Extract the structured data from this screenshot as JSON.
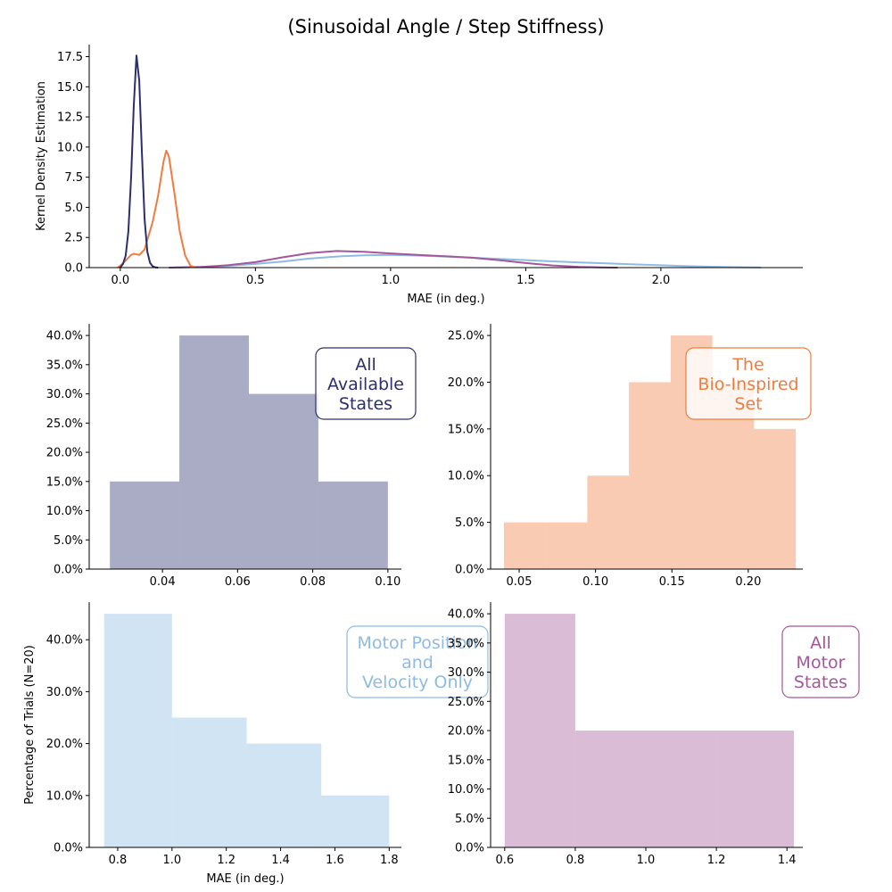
{
  "figure_title": "(Sinusoidal Angle / Step Stiffness)",
  "colors": {
    "all_states": "#2b2f6e",
    "bio_inspired": "#f07c3e",
    "motor_pos_vel": "#8dbbe3",
    "all_motor": "#a4579b"
  },
  "chart_data": [
    {
      "id": "kde",
      "type": "line",
      "title": "",
      "xlabel": "MAE (in deg.)",
      "ylabel": "Kernel Density Estimation",
      "xlim": [
        -0.115,
        2.525
      ],
      "ylim": [
        0,
        18.5
      ],
      "xticks": [
        0.0,
        0.5,
        1.0,
        1.5,
        2.0
      ],
      "xtick_labels": [
        "0.0",
        "0.5",
        "1.0",
        "1.5",
        "2.0"
      ],
      "yticks": [
        0,
        2.5,
        5,
        7.5,
        10,
        12.5,
        15,
        17.5
      ],
      "ytick_labels": [
        "0.0",
        "2.5",
        "5.0",
        "7.5",
        "10.0",
        "12.5",
        "15.0",
        "17.5"
      ],
      "series": [
        {
          "color_key": "motor_pos_vel",
          "x": [
            0.18,
            0.3,
            0.4,
            0.5,
            0.6,
            0.7,
            0.8,
            0.9,
            1.0,
            1.1,
            1.2,
            1.3,
            1.4,
            1.5,
            1.6,
            1.7,
            1.8,
            1.9,
            2.0,
            2.1,
            2.2,
            2.3,
            2.37
          ],
          "y": [
            0.0,
            0.05,
            0.15,
            0.3,
            0.5,
            0.75,
            0.92,
            1.02,
            1.05,
            1.0,
            0.92,
            0.82,
            0.72,
            0.62,
            0.52,
            0.43,
            0.35,
            0.27,
            0.19,
            0.12,
            0.07,
            0.03,
            0.01
          ]
        },
        {
          "color_key": "all_motor",
          "x": [
            0.18,
            0.3,
            0.4,
            0.5,
            0.6,
            0.7,
            0.8,
            0.9,
            1.0,
            1.1,
            1.2,
            1.3,
            1.4,
            1.5,
            1.6,
            1.7,
            1.8,
            1.84
          ],
          "y": [
            0.0,
            0.05,
            0.2,
            0.45,
            0.85,
            1.2,
            1.38,
            1.32,
            1.18,
            1.05,
            0.95,
            0.82,
            0.62,
            0.38,
            0.18,
            0.06,
            0.01,
            0.0
          ]
        },
        {
          "color_key": "bio_inspired",
          "x": [
            -0.01,
            0.0,
            0.02,
            0.04,
            0.05,
            0.07,
            0.09,
            0.1,
            0.12,
            0.14,
            0.16,
            0.17,
            0.18,
            0.2,
            0.22,
            0.24,
            0.26,
            0.28
          ],
          "y": [
            0.0,
            0.15,
            0.6,
            1.05,
            1.15,
            1.05,
            1.5,
            2.3,
            3.8,
            6.0,
            8.8,
            9.7,
            9.2,
            6.2,
            3.0,
            1.0,
            0.15,
            0.0
          ]
        },
        {
          "color_key": "all_states",
          "x": [
            0.0,
            0.01,
            0.02,
            0.03,
            0.04,
            0.05,
            0.06,
            0.07,
            0.08,
            0.09,
            0.1,
            0.11,
            0.12,
            0.13,
            0.14
          ],
          "y": [
            0.0,
            0.3,
            1.0,
            3.0,
            7.5,
            13.5,
            17.6,
            15.5,
            9.5,
            4.0,
            1.3,
            0.4,
            0.1,
            0.02,
            0.0
          ]
        }
      ]
    },
    {
      "id": "hist_all_states",
      "type": "bar",
      "annotation": [
        "All",
        "Available",
        "States"
      ],
      "color_key": "all_states",
      "xlim": [
        0.0205,
        0.1036
      ],
      "ylim": [
        0,
        0.42
      ],
      "bin_edges": [
        0.026,
        0.0445,
        0.063,
        0.0815,
        0.1
      ],
      "values": [
        0.15,
        0.4,
        0.3,
        0.15
      ],
      "xticks": [
        0.04,
        0.06,
        0.08,
        0.1
      ],
      "xtick_labels": [
        "0.04",
        "0.06",
        "0.08",
        "0.10"
      ],
      "yticks": [
        0,
        0.05,
        0.1,
        0.15,
        0.2,
        0.25,
        0.3,
        0.35,
        0.4
      ],
      "ytick_labels": [
        "0.0%",
        "5.0%",
        "10.0%",
        "15.0%",
        "20.0%",
        "25.0%",
        "30.0%",
        "35.0%",
        "40.0%"
      ]
    },
    {
      "id": "hist_bio_inspired",
      "type": "bar",
      "annotation": [
        "The",
        "Bio-Inspired",
        "Set"
      ],
      "color_key": "bio_inspired",
      "xlim": [
        0.0313,
        0.2357
      ],
      "ylim": [
        0,
        0.2625
      ],
      "bin_edges": [
        0.04,
        0.0673,
        0.0946,
        0.1219,
        0.1492,
        0.1765,
        0.2038,
        0.2311
      ],
      "values": [
        0.05,
        0.05,
        0.1,
        0.2,
        0.25,
        0.2,
        0.15
      ],
      "xticks": [
        0.05,
        0.1,
        0.15,
        0.2
      ],
      "xtick_labels": [
        "0.05",
        "0.10",
        "0.15",
        "0.20"
      ],
      "yticks": [
        0,
        0.05,
        0.1,
        0.15,
        0.2,
        0.25
      ],
      "ytick_labels": [
        "0.0%",
        "5.0%",
        "10.0%",
        "15.0%",
        "20.0%",
        "25.0%"
      ]
    },
    {
      "id": "hist_motor_pos_vel",
      "type": "bar",
      "annotation": [
        "Motor Position",
        "and",
        "Velocity Only"
      ],
      "color_key": "motor_pos_vel",
      "xlabel": "MAE (in deg.)",
      "ylabel": "Percentage of Trials (N=20)",
      "xlim": [
        0.695,
        1.845
      ],
      "ylim": [
        0,
        0.4725
      ],
      "bin_edges": [
        0.75,
        1.0,
        1.275,
        1.55,
        1.8
      ],
      "values": [
        0.45,
        0.25,
        0.2,
        0.1
      ],
      "xticks": [
        0.8,
        1.0,
        1.2,
        1.4,
        1.6,
        1.8
      ],
      "xtick_labels": [
        "0.8",
        "1.0",
        "1.2",
        "1.4",
        "1.6",
        "1.8"
      ],
      "yticks": [
        0,
        0.1,
        0.2,
        0.3,
        0.4
      ],
      "ytick_labels": [
        "0.0%",
        "10.0%",
        "20.0%",
        "30.0%",
        "40.0%"
      ]
    },
    {
      "id": "hist_all_motor",
      "type": "bar",
      "annotation": [
        "All",
        "Motor",
        "States"
      ],
      "color_key": "all_motor",
      "xlim": [
        0.56,
        1.445
      ],
      "ylim": [
        0,
        0.42
      ],
      "bin_edges": [
        0.6,
        0.8,
        1.0,
        1.2,
        1.42
      ],
      "values": [
        0.4,
        0.2,
        0.2,
        0.2
      ],
      "xticks": [
        0.6,
        0.8,
        1.0,
        1.2,
        1.4
      ],
      "xtick_labels": [
        "0.6",
        "0.8",
        "1.0",
        "1.2",
        "1.4"
      ],
      "yticks": [
        0,
        0.05,
        0.1,
        0.15,
        0.2,
        0.25,
        0.3,
        0.35,
        0.4
      ],
      "ytick_labels": [
        "0.0%",
        "5.0%",
        "10.0%",
        "15.0%",
        "20.0%",
        "25.0%",
        "30.0%",
        "35.0%",
        "40.0%"
      ]
    }
  ]
}
